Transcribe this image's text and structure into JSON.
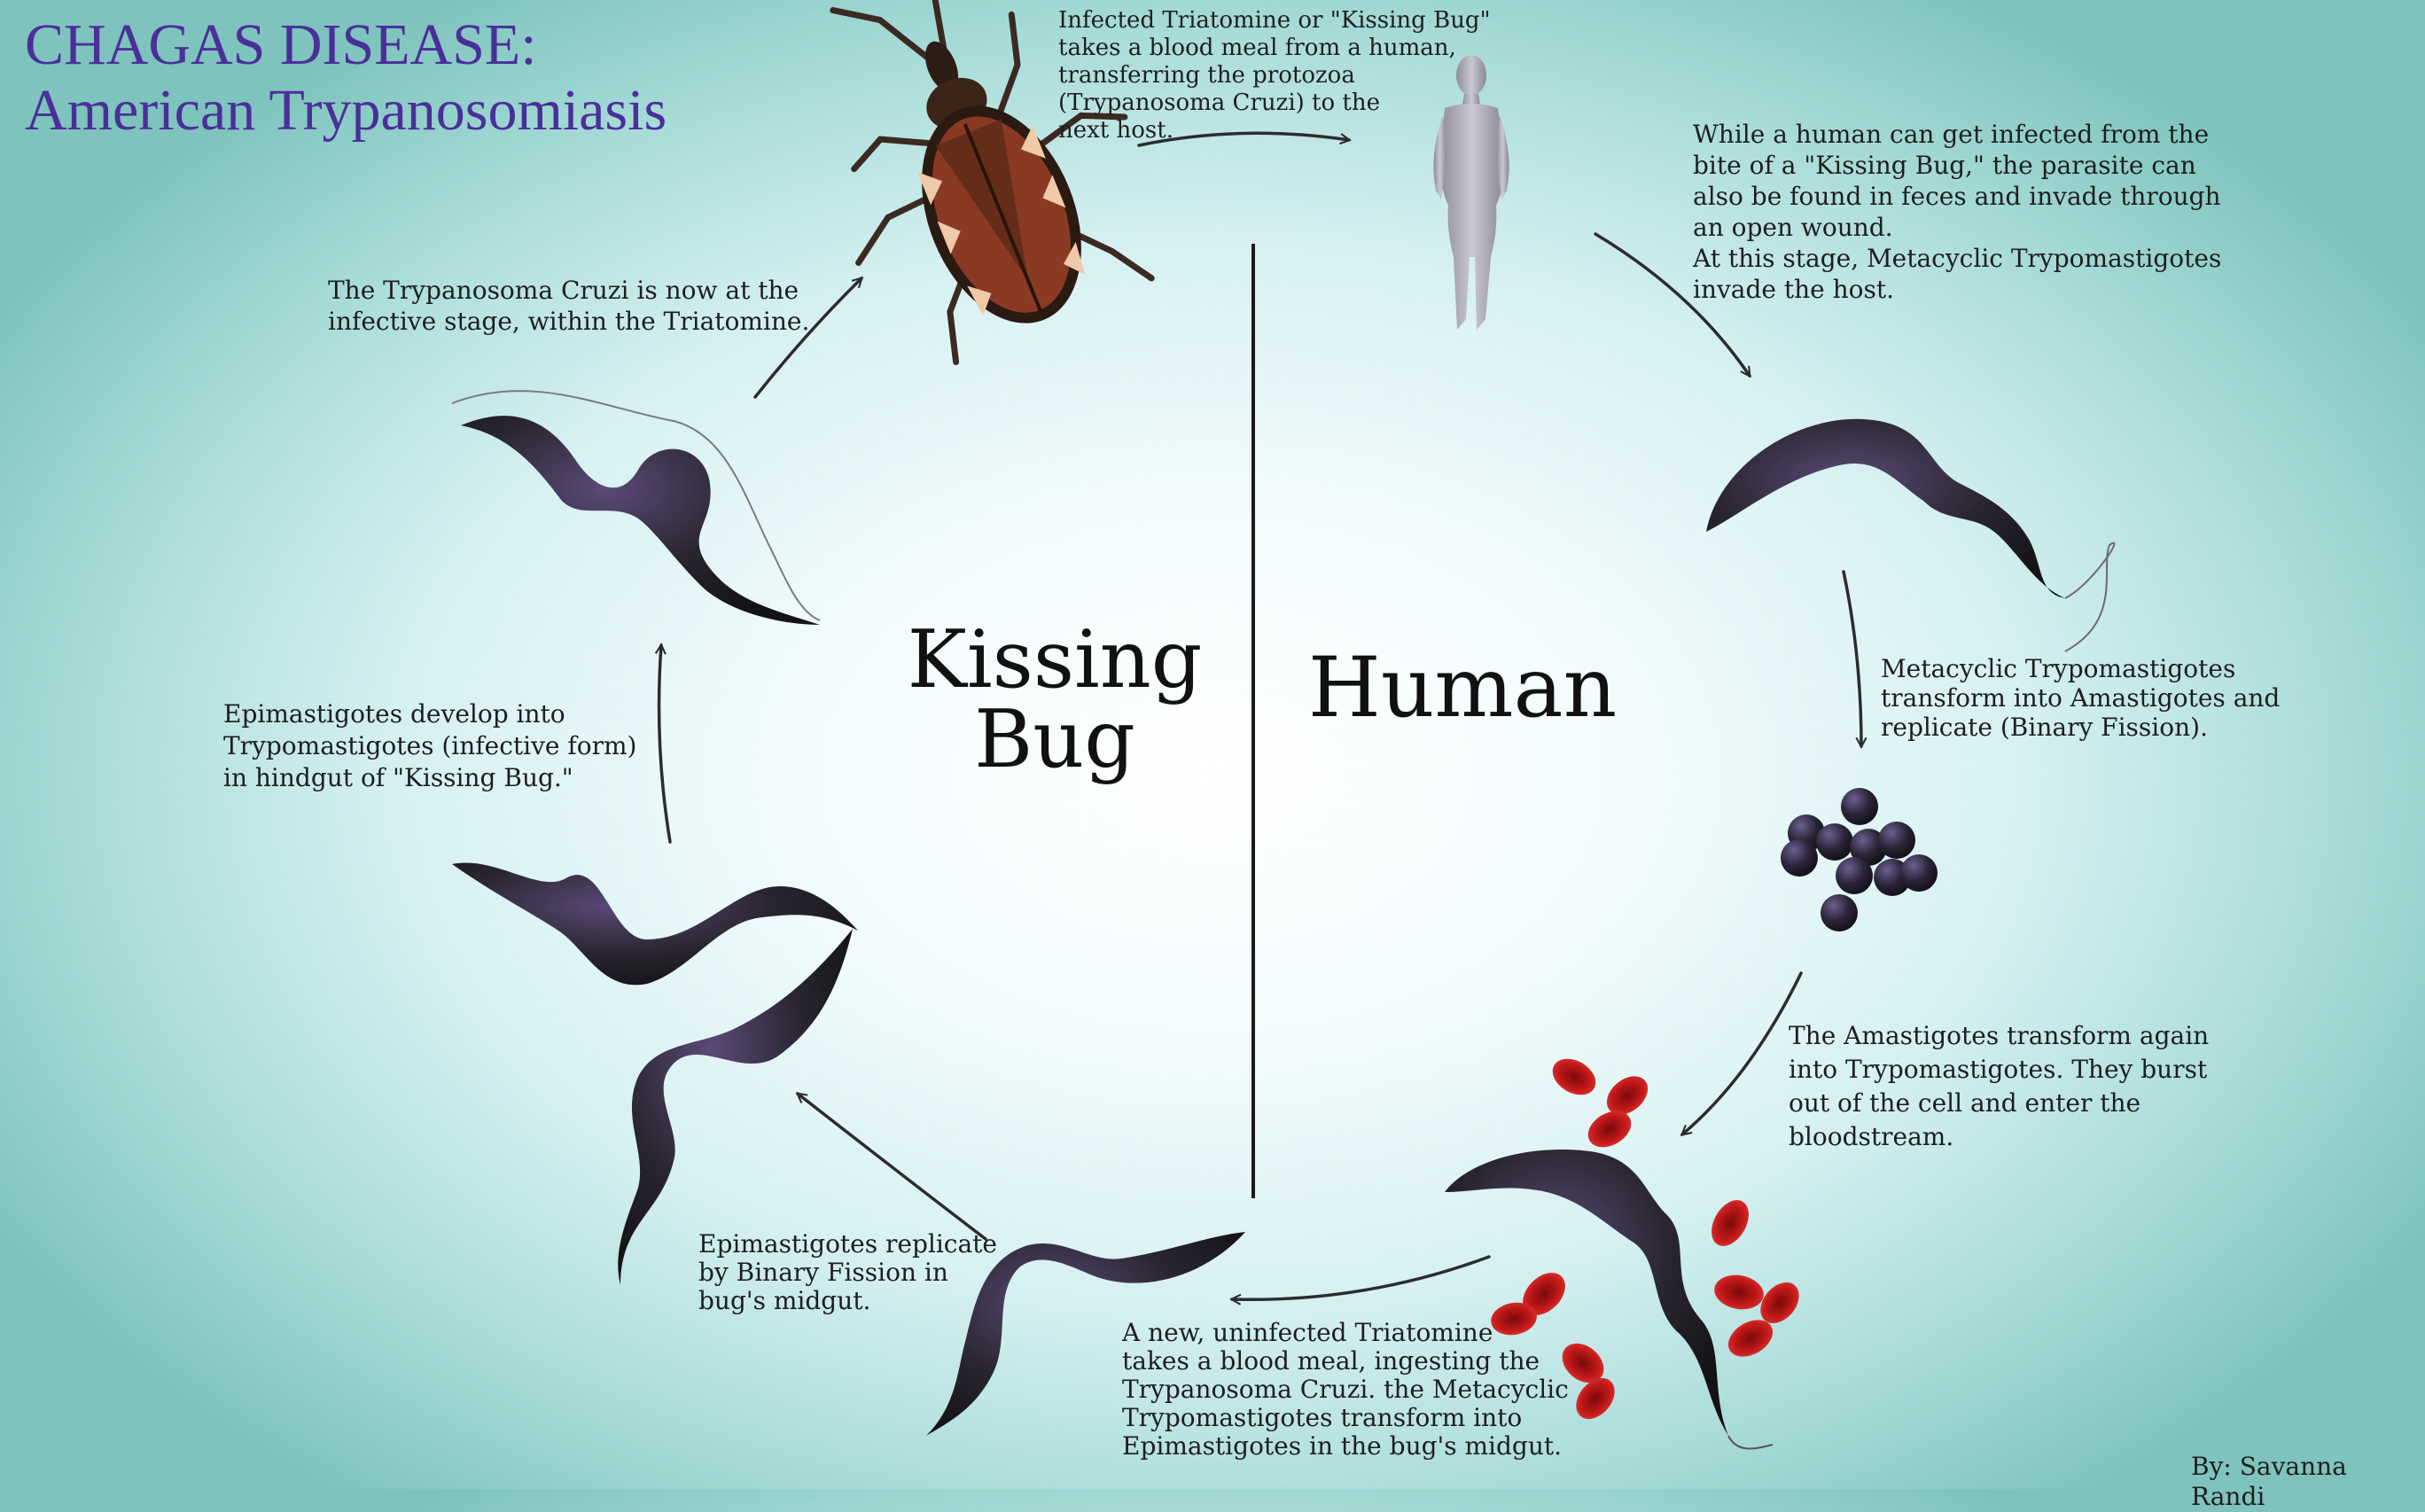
{
  "title": {
    "line1": "CHAGAS DISEASE:",
    "line2": "American Trypanosomiasis"
  },
  "sides": {
    "left": "Kissing\nBug",
    "right": "Human"
  },
  "steps": {
    "blood_meal_infected": "Infected Triatomine or \"Kissing Bug\"\ntakes a blood meal from a human,\ntransferring the protozoa\n(Trypanosoma Cruzi) to the\nnext host.",
    "human_infection": "While a human can get infected from the\nbite of a \"Kissing Bug,\" the parasite can\nalso be found in feces and invade through\nan open wound.\nAt this stage, Metacyclic Trypomastigotes\ninvade the host.",
    "amastigote_replication": "Metacyclic Trypomastigotes\ntransform into Amastigotes and\nreplicate (Binary Fission).",
    "bloodstream": "The Amastigotes transform again\ninto Trypomastigotes. They burst\nout of the cell and enter the\nbloodstream.",
    "new_triatomine": "A new, uninfected Triatomine\ntakes a blood meal, ingesting the\nTrypanosoma Cruzi. the Metacyclic\nTrypomastigotes transform into\nEpimastigotes in the bug's midgut.",
    "epi_replicate": "Epimastigotes replicate\nby Binary Fission in\nbug's midgut.",
    "epi_develop": "Epimastigotes develop into\nTrypomastigotes (infective form)\nin hindgut of \"Kissing Bug.\"",
    "infective_stage": "The Trypanosoma Cruzi is now at the\ninfective stage, within the Triatomine."
  },
  "credit": "By: Savanna Randi",
  "colors": {
    "title": "#4a2f99",
    "parasite": "#2a2630",
    "blood_cell": "#c01818",
    "arrow": "#2c2c2c"
  }
}
